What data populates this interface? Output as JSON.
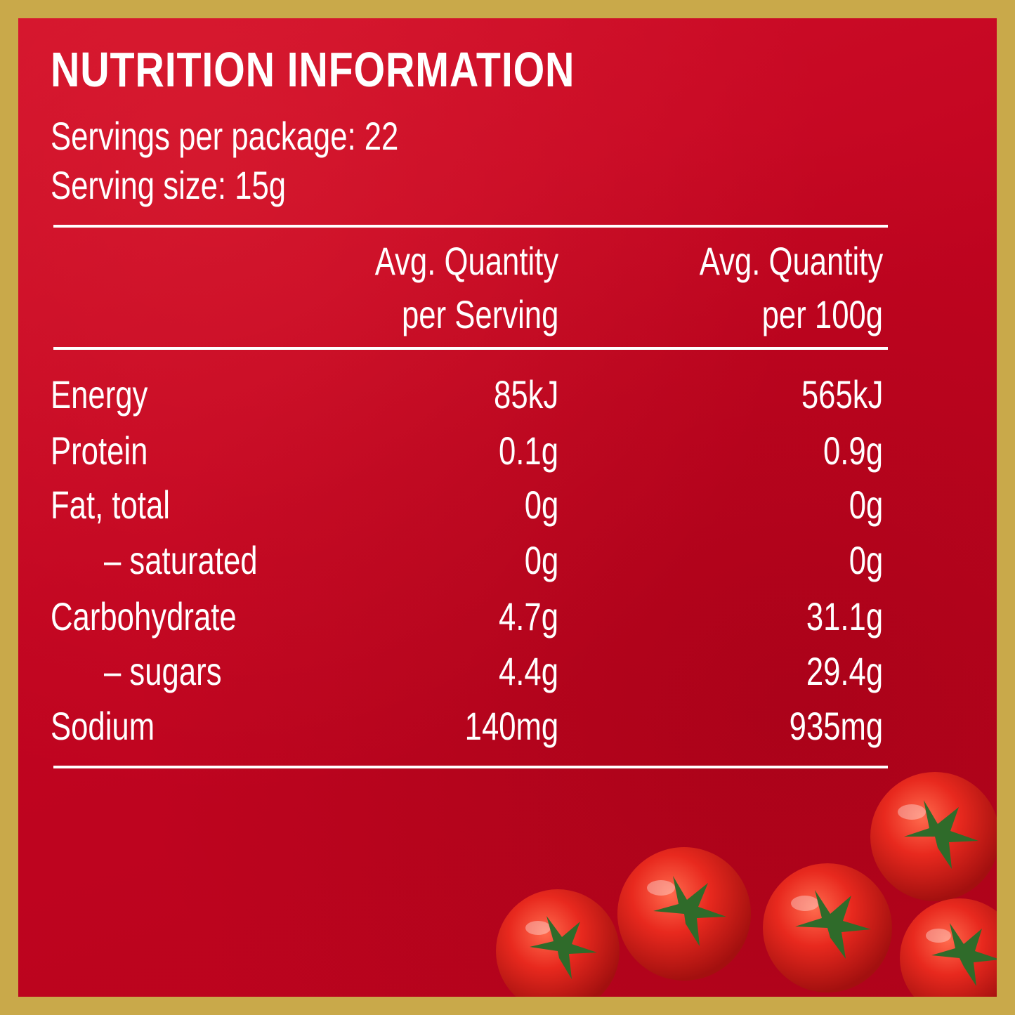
{
  "title": "NUTRITION INFORMATION",
  "servings_per_package": "Servings per package: 22",
  "serving_size": "Serving size: 15g",
  "columns": {
    "per_serving": [
      "Avg. Quantity",
      "per Serving"
    ],
    "per_100g": [
      "Avg. Quantity",
      "per 100g"
    ]
  },
  "rows": [
    {
      "label": "Energy",
      "per_serving": "85kJ",
      "per_100g": "565kJ"
    },
    {
      "label": "Protein",
      "per_serving": "0.1g",
      "per_100g": "0.9g"
    },
    {
      "label": "Fat, total",
      "per_serving": "0g",
      "per_100g": "0g"
    },
    {
      "label": "– saturated",
      "per_serving": "0g",
      "per_100g": "0g"
    },
    {
      "label": "Carbohydrate",
      "per_serving": "4.7g",
      "per_100g": "31.1g"
    },
    {
      "label": "– sugars",
      "per_serving": "4.4g",
      "per_100g": "29.4g"
    },
    {
      "label": "Sodium",
      "per_serving": "140mg",
      "per_100g": "935mg"
    }
  ],
  "colors": {
    "border": "#c9a94a",
    "background": "#c10420",
    "text": "#ffffff",
    "tomato": "#e0241b",
    "stem": "#2f6b2a"
  },
  "decoration": {
    "image": "cherry-tomatoes"
  }
}
